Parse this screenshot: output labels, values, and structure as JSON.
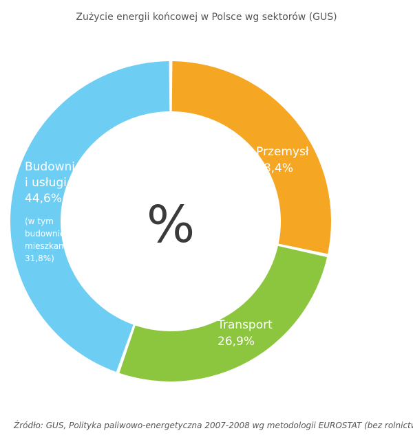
{
  "title": "Zużycie energii końcowej w Polsce wg sektorów (GUS)",
  "center_symbol": "%",
  "source": "Źródło: GUS, Polityka paliwowo-energetyczna 2007-2008 wg metodologii EUROSTAT (bez rolnictwa)",
  "chart_data": {
    "type": "pie",
    "variant": "donut",
    "start_angle_deg": 0,
    "direction": "clockwise",
    "slices": [
      {
        "label_lines": [
          "Przemysł",
          "28,4%"
        ],
        "value": 28.4,
        "color": "#f5a623"
      },
      {
        "label_lines": [
          "Transport",
          "26,9%"
        ],
        "value": 26.9,
        "color": "#8cc63f"
      },
      {
        "label_lines": [
          "Budownictwo",
          "i usługi",
          "44,6%"
        ],
        "note_lines": [
          "(w tym",
          "budownictwo",
          "mieszkaniowe",
          "31,8%)"
        ],
        "value": 44.6,
        "color": "#6dcdf2"
      }
    ]
  }
}
